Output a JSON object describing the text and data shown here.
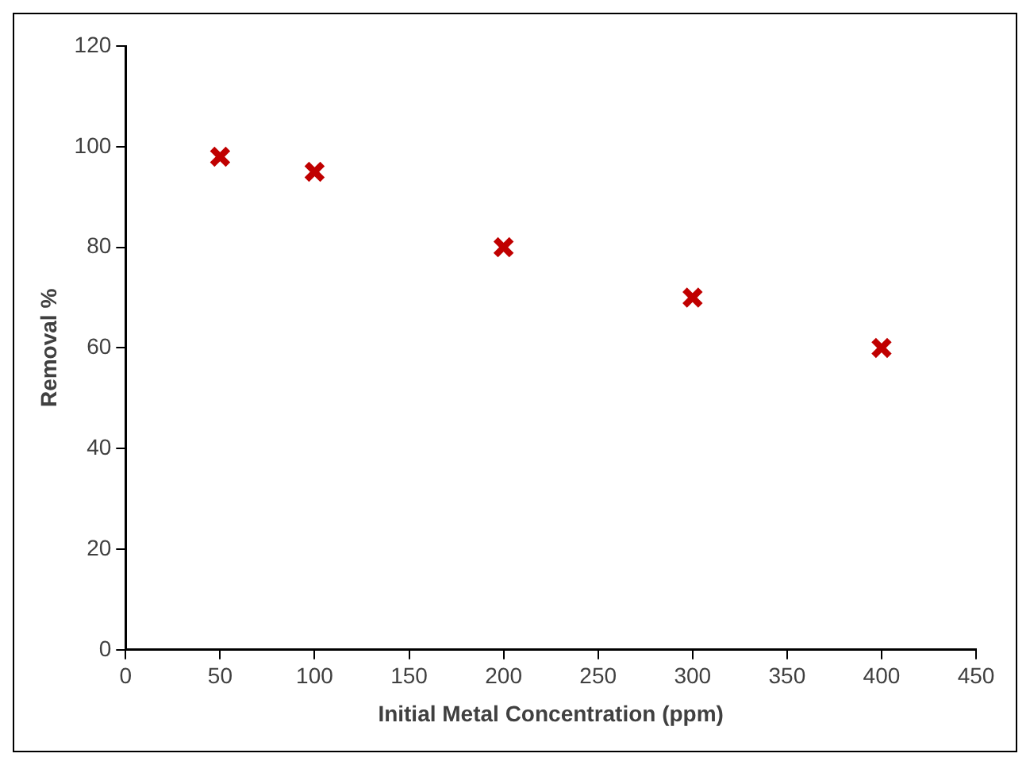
{
  "chart_data": {
    "type": "scatter",
    "xlabel": "Initial Metal Concentration (ppm)",
    "ylabel": "Removal %",
    "x": [
      50,
      100,
      200,
      300,
      400
    ],
    "series": [
      {
        "color": "#c00000",
        "values": [
          98,
          95,
          80,
          70,
          60
        ]
      }
    ],
    "xlim": [
      0,
      450
    ],
    "xticks": [
      0,
      50,
      100,
      150,
      200,
      250,
      300,
      350,
      400,
      450
    ],
    "ylim": [
      0,
      120
    ],
    "yticks": [
      0,
      20,
      40,
      60,
      80,
      100,
      120
    ],
    "grid": false,
    "legend": false,
    "marker": "cross"
  }
}
